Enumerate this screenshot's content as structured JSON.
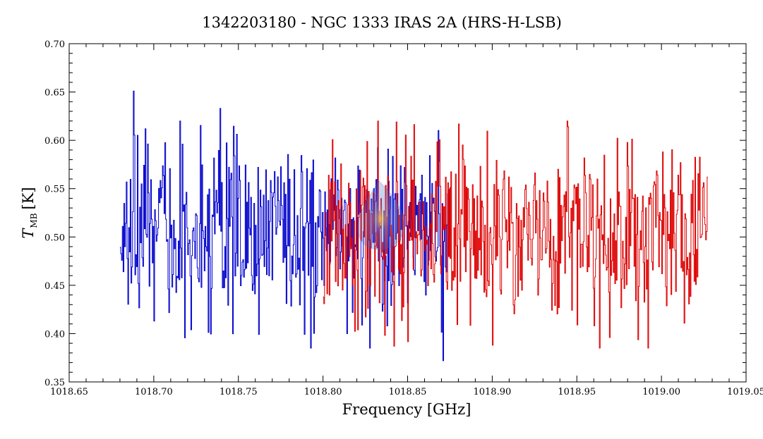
{
  "chart_data": {
    "type": "line",
    "title": "1342203180 - NGC 1333 IRAS 2A (HRS-H-LSB)",
    "xlabel": "Frequency [GHz]",
    "ylabel": {
      "main": "T",
      "sub": "MB",
      "unit": "[K]"
    },
    "xlim": [
      1018.65,
      1019.05
    ],
    "ylim": [
      0.35,
      0.7
    ],
    "xticks": [
      1018.65,
      1018.7,
      1018.75,
      1018.8,
      1018.85,
      1018.9,
      1018.95,
      1019.0,
      1019.05
    ],
    "xtick_labels": [
      "1018.65",
      "1018.70",
      "1018.75",
      "1018.80",
      "1018.85",
      "1018.90",
      "1018.95",
      "1019.00",
      "1019.05"
    ],
    "yticks": [
      0.35,
      0.4,
      0.45,
      0.5,
      0.55,
      0.6,
      0.65,
      0.7
    ],
    "ytick_labels": [
      "0.35",
      "0.40",
      "0.45",
      "0.50",
      "0.55",
      "0.60",
      "0.65",
      "0.70"
    ],
    "grid": false,
    "series": [
      {
        "color": "#0000cc",
        "x_start": 1018.68,
        "x_end": 1018.875,
        "points": 420,
        "mean": 0.505,
        "noise": 0.045,
        "extrema": [
          [
            1018.688,
            0.651
          ],
          [
            1018.695,
            0.612
          ],
          [
            1018.7,
            0.413
          ],
          [
            1018.739,
            0.633
          ],
          [
            1018.871,
            0.372
          ]
        ]
      },
      {
        "color": "#dd0000",
        "x_start": 1018.8,
        "x_end": 1019.027,
        "points": 500,
        "mean": 0.5,
        "noise": 0.045,
        "extrema": [
          [
            1018.843,
            0.619
          ],
          [
            1018.842,
            0.387
          ],
          [
            1018.88,
            0.617
          ],
          [
            1018.9,
            0.388
          ],
          [
            1019.027,
            0.562
          ]
        ]
      }
    ]
  }
}
